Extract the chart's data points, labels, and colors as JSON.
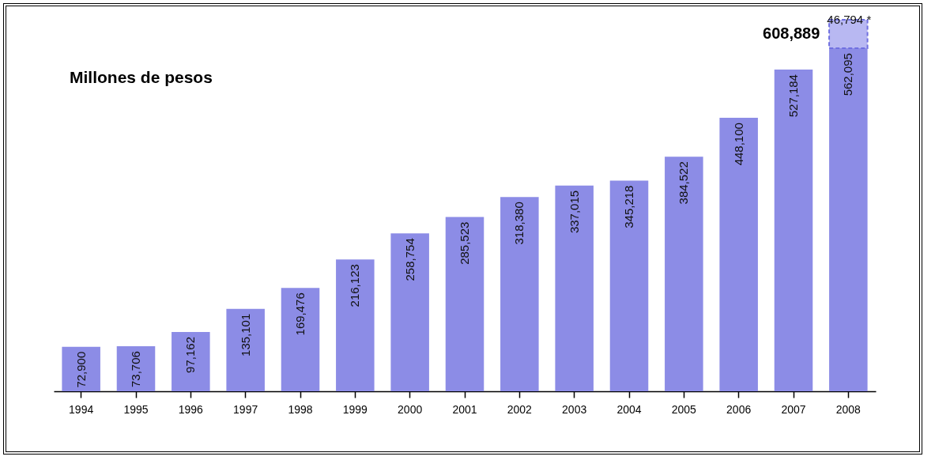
{
  "chart_data": {
    "type": "bar",
    "title": "Millones de pesos",
    "stacked": true,
    "categories": [
      "1994",
      "1995",
      "1996",
      "1997",
      "1998",
      "1999",
      "2000",
      "2001",
      "2002",
      "2003",
      "2004",
      "2005",
      "2006",
      "2007",
      "2008"
    ],
    "series": [
      {
        "color": "#8c8ce6",
        "values": [
          72900,
          73706,
          97162,
          135101,
          169476,
          216123,
          258754,
          285523,
          318380,
          337015,
          345218,
          384522,
          448100,
          527184,
          562095
        ],
        "value_labels": [
          "72,900",
          "73,706",
          "97,162",
          "135,101",
          "169,476",
          "216,123",
          "258,754",
          "285,523",
          "318,380",
          "337,015",
          "345,218",
          "384,522",
          "448,100",
          "527,184",
          "562,095"
        ]
      },
      {
        "color": "#b8b8f2",
        "values": [
          null,
          null,
          null,
          null,
          null,
          null,
          null,
          null,
          null,
          null,
          null,
          null,
          null,
          null,
          46794
        ],
        "value_labels": [
          null,
          null,
          null,
          null,
          null,
          null,
          null,
          null,
          null,
          null,
          null,
          null,
          null,
          null,
          "46,794 *"
        ]
      }
    ],
    "totals": [
      null,
      null,
      null,
      null,
      null,
      null,
      null,
      null,
      null,
      null,
      null,
      null,
      null,
      null,
      "608,889"
    ],
    "grid": false
  }
}
